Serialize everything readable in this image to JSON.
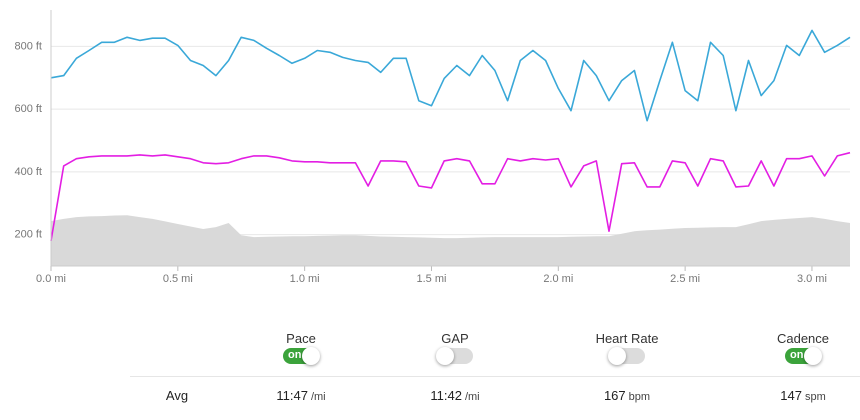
{
  "chart_data": {
    "type": "line",
    "x": [
      0,
      0.05,
      0.1,
      0.15,
      0.2,
      0.25,
      0.3,
      0.35,
      0.4,
      0.45,
      0.5,
      0.55,
      0.6,
      0.65,
      0.7,
      0.75,
      0.8,
      0.85,
      0.9,
      0.95,
      1.0,
      1.05,
      1.1,
      1.15,
      1.2,
      1.25,
      1.3,
      1.35,
      1.4,
      1.45,
      1.5,
      1.55,
      1.6,
      1.65,
      1.7,
      1.75,
      1.8,
      1.85,
      1.9,
      1.95,
      2.0,
      2.05,
      2.1,
      2.15,
      2.2,
      2.25,
      2.3,
      2.35,
      2.4,
      2.45,
      2.5,
      2.55,
      2.6,
      2.65,
      2.7,
      2.75,
      2.8,
      2.85,
      2.9,
      2.95,
      3.0,
      3.05,
      3.1,
      3.15
    ],
    "series": [
      {
        "kind": "area",
        "color": "#d9d9d9",
        "values": [
          243,
          250,
          256,
          258,
          259,
          261,
          262,
          256,
          250,
          242,
          234,
          226,
          218,
          224,
          237,
          198,
          192,
          193,
          194,
          195,
          195,
          196,
          197,
          198,
          198,
          196,
          194,
          193,
          192,
          191,
          190,
          189,
          189,
          190,
          191,
          192,
          192,
          192,
          192,
          192,
          192,
          193,
          194,
          195,
          195,
          203,
          211,
          214,
          216,
          219,
          221,
          222,
          223,
          224,
          224,
          233,
          243,
          247,
          250,
          253,
          256,
          250,
          243,
          237
        ]
      },
      {
        "kind": "line",
        "color": "#3aa8d8",
        "values": [
          700,
          707,
          762,
          787,
          813,
          813,
          829,
          819,
          826,
          826,
          803,
          755,
          739,
          707,
          755,
          829,
          819,
          794,
          771,
          746,
          762,
          787,
          781,
          765,
          755,
          749,
          717,
          762,
          762,
          627,
          611,
          698,
          739,
          707,
          771,
          723,
          627,
          755,
          787,
          755,
          666,
          595,
          755,
          707,
          627,
          691,
          723,
          563,
          691,
          813,
          659,
          627,
          813,
          771,
          595,
          755,
          643,
          691,
          803,
          771,
          851,
          781,
          803,
          829
        ]
      },
      {
        "kind": "line",
        "color": "#e31ee3",
        "values": [
          180,
          419,
          442,
          448,
          451,
          451,
          451,
          454,
          451,
          454,
          448,
          442,
          429,
          426,
          429,
          442,
          451,
          451,
          445,
          435,
          432,
          432,
          429,
          429,
          429,
          355,
          435,
          435,
          432,
          355,
          349,
          435,
          442,
          435,
          362,
          362,
          442,
          435,
          442,
          438,
          442,
          352,
          419,
          435,
          211,
          426,
          429,
          352,
          352,
          435,
          429,
          355,
          442,
          435,
          352,
          355,
          435,
          355,
          442,
          442,
          451,
          387,
          451,
          461
        ]
      }
    ],
    "xlim": [
      0,
      3.15
    ],
    "ylim": [
      100,
      900
    ],
    "xticks": [
      {
        "value": 0,
        "label": "0.0 mi"
      },
      {
        "value": 0.5,
        "label": "0.5 mi"
      },
      {
        "value": 1,
        "label": "1.0 mi"
      },
      {
        "value": 1.5,
        "label": "1.5 mi"
      },
      {
        "value": 2,
        "label": "2.0 mi"
      },
      {
        "value": 2.5,
        "label": "2.5 mi"
      },
      {
        "value": 3,
        "label": "3.0 mi"
      }
    ],
    "yticks": [
      {
        "value": 200,
        "label": "200 ft"
      },
      {
        "value": 400,
        "label": "400 ft"
      },
      {
        "value": 600,
        "label": "600 ft"
      },
      {
        "value": 800,
        "label": "800 ft"
      }
    ],
    "grid": true
  },
  "stats": {
    "row_label": "Avg",
    "columns": [
      {
        "name": "Pace",
        "on": true,
        "toggle_label": "on",
        "value": "11:47",
        "unit": "/mi"
      },
      {
        "name": "GAP",
        "on": false,
        "value": "11:42",
        "unit": "/mi"
      },
      {
        "name": "Heart Rate",
        "on": false,
        "value": "167",
        "unit": "bpm"
      },
      {
        "name": "Cadence",
        "on": true,
        "toggle_label": "on",
        "value": "147",
        "unit": "spm"
      }
    ]
  }
}
